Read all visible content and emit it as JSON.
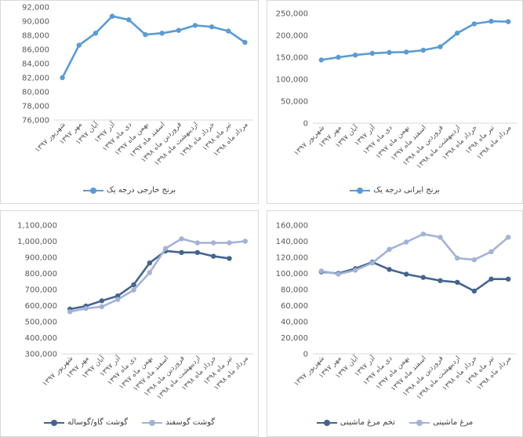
{
  "chart_data": [
    {
      "type": "line",
      "title": "",
      "xlabel": "",
      "ylabel": "",
      "categories": [
        "شهریور ۱۳۹۷",
        "مهر ۱۳۹۷",
        "آبان ۱۳۹۷",
        "آذر ۱۳۹۷",
        "دی ماه ۱۳۹۷",
        "بهمن ماه ۱۳۹۷",
        "اسفند ماه ۱۳۹۷",
        "فروردین ماه ۱۳۹۸",
        "اردیبهشت ماه ۱۳۹۸",
        "خرداد ماه ۱۳۹۸",
        "تیر ماه ۱۳۹۸",
        "مرداد ماه ۱۳۹۸"
      ],
      "ylim": [
        76000,
        92000
      ],
      "yticks": [
        "76,000",
        "78,000",
        "80,000",
        "82,000",
        "84,000",
        "86,000",
        "88,000",
        "90,000",
        "92,000"
      ],
      "grid": false,
      "legend_position": "bottom",
      "series": [
        {
          "name": "برنج خارجی درجه یک",
          "color": "#5b9bd5",
          "values": [
            82000,
            86600,
            88300,
            90700,
            90200,
            88100,
            88300,
            88700,
            89400,
            89200,
            88600,
            87000
          ]
        }
      ]
    },
    {
      "type": "line",
      "title": "",
      "xlabel": "",
      "ylabel": "",
      "categories": [
        "شهریور ۱۳۹۷",
        "مهر ۱۳۹۷",
        "آبان ۱۳۹۷",
        "آذر ۱۳۹۷",
        "دی ماه ۱۳۹۷",
        "بهمن ماه ۱۳۹۷",
        "اسفند ماه ۱۳۹۷",
        "فروردین ماه ۱۳۹۸",
        "اردیبهشت ماه ۱۳۹۸",
        "خرداد ماه ۱۳۹۸",
        "تیر ماه ۱۳۹۸",
        "مرداد ماه ۱۳۹۸"
      ],
      "ylim": [
        0,
        250000
      ],
      "yticks": [
        "0",
        "50,000",
        "100,000",
        "150,000",
        "200,000",
        "250,000"
      ],
      "grid": false,
      "legend_position": "bottom",
      "series": [
        {
          "name": "برنج ایرانی درجه یک",
          "color": "#5b9bd5",
          "values": [
            144000,
            150000,
            155000,
            159000,
            161000,
            162000,
            166000,
            174000,
            205000,
            226000,
            232000,
            231000
          ]
        }
      ]
    },
    {
      "type": "line",
      "title": "",
      "xlabel": "",
      "ylabel": "",
      "categories": [
        "شهریور ۱۳۹۷",
        "مهر ۱۳۹۷",
        "آبان ۱۳۹۷",
        "آذر ۱۳۹۷",
        "دی ماه ۱۳۹۷",
        "بهمن ماه ۱۳۹۷",
        "اسفند ماه ۱۳۹۷",
        "فروردین ماه ۱۳۹۸",
        "اردیبهشت ماه ۱۳۹۸",
        "خرداد ماه ۱۳۹۸",
        "تیر ماه ۱۳۹۸",
        "مرداد ماه ۱۳۹۸"
      ],
      "ylim": [
        300000,
        1100000
      ],
      "yticks": [
        "300,000",
        "400,000",
        "500,000",
        "600,000",
        "700,000",
        "800,000",
        "900,000",
        "1,000,000",
        "1,100,000"
      ],
      "grid": false,
      "legend_position": "bottom",
      "series": [
        {
          "name": "گوشت گاو/گوساله",
          "color": "#44648f",
          "values": [
            578000,
            597000,
            630000,
            660000,
            730000,
            865000,
            940000,
            930000,
            930000,
            907000,
            893000,
            null
          ]
        },
        {
          "name": "گوشت گوسفند",
          "color": "#a3b3d6",
          "values": [
            562000,
            582000,
            593000,
            638000,
            697000,
            805000,
            955000,
            1015000,
            990000,
            990000,
            990000,
            1000000
          ]
        }
      ]
    },
    {
      "type": "line",
      "title": "",
      "xlabel": "",
      "ylabel": "",
      "categories": [
        "شهریور ۱۳۹۷",
        "مهر ۱۳۹۷",
        "آبان ۱۳۹۷",
        "آذر ۱۳۹۷",
        "دی ماه ۱۳۹۷",
        "بهمن ماه ۱۳۹۷",
        "اسفند ماه ۱۳۹۷",
        "فروردین ماه ۱۳۹۸",
        "اردیبهشت ماه ۱۳۹۸",
        "خرداد ماه ۱۳۹۸",
        "تیر ماه ۱۳۹۸",
        "مرداد ماه ۱۳۹۸"
      ],
      "ylim": [
        0,
        160000
      ],
      "yticks": [
        "0",
        "20,000",
        "40,000",
        "60,000",
        "80,000",
        "100,000",
        "120,000",
        "140,000",
        "160,000"
      ],
      "grid": false,
      "legend_position": "bottom",
      "series": [
        {
          "name": "تخم مرغ ماشینی",
          "color": "#44648f",
          "values": [
            102000,
            100000,
            106000,
            114000,
            105000,
            99000,
            95000,
            91000,
            89000,
            78000,
            93000,
            93000
          ]
        },
        {
          "name": "مرغ ماشینی",
          "color": "#a3b3d6",
          "values": [
            103000,
            99000,
            104000,
            113000,
            130000,
            139000,
            149000,
            145000,
            119000,
            117000,
            127000,
            145000
          ]
        }
      ]
    }
  ]
}
